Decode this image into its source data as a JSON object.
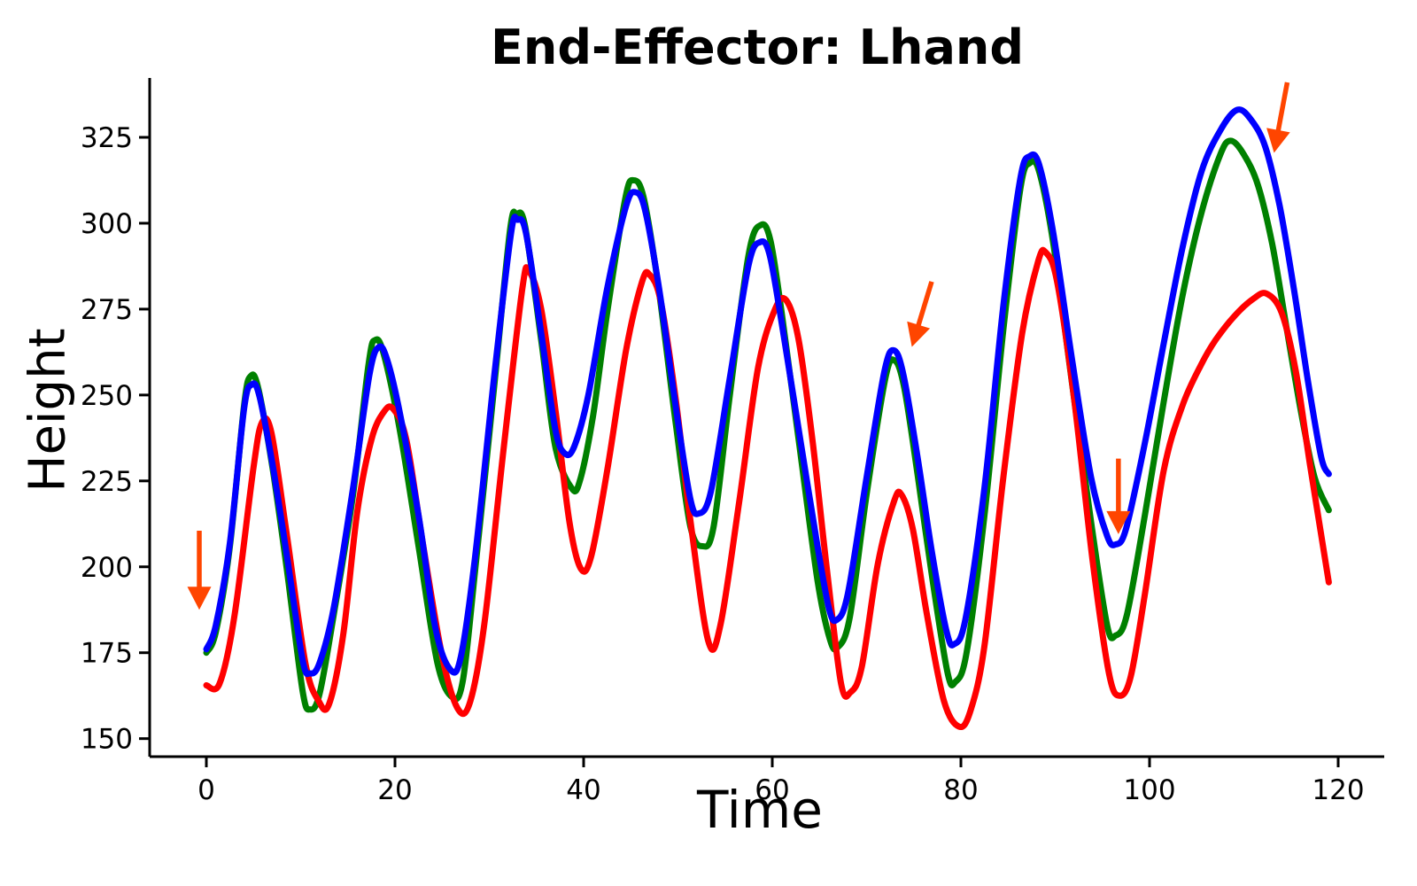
{
  "figure": {
    "background": "#ffffff",
    "text_color": "#000000",
    "spine_color": "#000000"
  },
  "chart_data": {
    "type": "line",
    "title": "End-Effector: Lhand",
    "xlabel": "Time",
    "ylabel": "Height",
    "xlim": [
      -6,
      125
    ],
    "ylim": [
      144.5,
      342
    ],
    "x_ticks": [
      0,
      20,
      40,
      60,
      80,
      100,
      120
    ],
    "y_ticks": [
      150,
      175,
      200,
      225,
      250,
      275,
      300,
      325
    ],
    "grid": false,
    "legend": "none",
    "series": [
      {
        "name": "green-line",
        "color": "#008000",
        "points": [
          [
            0,
            175
          ],
          [
            1,
            181
          ],
          [
            2.5,
            206
          ],
          [
            4,
            247
          ],
          [
            4.7,
            255.5
          ],
          [
            5.5,
            252
          ],
          [
            7,
            229
          ],
          [
            8.5,
            200
          ],
          [
            10.2,
            164
          ],
          [
            11,
            158.5
          ],
          [
            12,
            163
          ],
          [
            13.5,
            186
          ],
          [
            15.5,
            220
          ],
          [
            17.2,
            259
          ],
          [
            17.9,
            266
          ],
          [
            18.8,
            262
          ],
          [
            20.5,
            240
          ],
          [
            22.5,
            206
          ],
          [
            24.5,
            172
          ],
          [
            26.1,
            162
          ],
          [
            27.2,
            167
          ],
          [
            28.5,
            199
          ],
          [
            30.5,
            252
          ],
          [
            32.2,
            298
          ],
          [
            32.9,
            302.5
          ],
          [
            33.8,
            299
          ],
          [
            35.5,
            266
          ],
          [
            37,
            235
          ],
          [
            38.7,
            223
          ],
          [
            39.6,
            225
          ],
          [
            41,
            244
          ],
          [
            42.5,
            274
          ],
          [
            44.4,
            307
          ],
          [
            45.3,
            312.5
          ],
          [
            46.4,
            307
          ],
          [
            48,
            280
          ],
          [
            49.8,
            241
          ],
          [
            51.3,
            212
          ],
          [
            52.6,
            206
          ],
          [
            53.8,
            212
          ],
          [
            55.5,
            250
          ],
          [
            57.5,
            291
          ],
          [
            58.8,
            299.5
          ],
          [
            59.8,
            295
          ],
          [
            61,
            274
          ],
          [
            62.8,
            237
          ],
          [
            64.8,
            196
          ],
          [
            66.1,
            179
          ],
          [
            66.9,
            176.5
          ],
          [
            68.2,
            185
          ],
          [
            70,
            221
          ],
          [
            72,
            255
          ],
          [
            73,
            260
          ],
          [
            74,
            252
          ],
          [
            75.4,
            227
          ],
          [
            77,
            196
          ],
          [
            78.6,
            169
          ],
          [
            79.4,
            166.5
          ],
          [
            80.6,
            175
          ],
          [
            82.5,
            215
          ],
          [
            84.5,
            269
          ],
          [
            86.3,
            310
          ],
          [
            87.3,
            317.5
          ],
          [
            88.3,
            315
          ],
          [
            89.8,
            294
          ],
          [
            91.8,
            253
          ],
          [
            93.8,
            213
          ],
          [
            95.5,
            183
          ],
          [
            96.4,
            180
          ],
          [
            97.6,
            186
          ],
          [
            99.5,
            215
          ],
          [
            101.5,
            248
          ],
          [
            103.5,
            279
          ],
          [
            105.5,
            303
          ],
          [
            107.5,
            320
          ],
          [
            108.6,
            324
          ],
          [
            110,
            320
          ],
          [
            111.5,
            311
          ],
          [
            113,
            294
          ],
          [
            114.5,
            270
          ],
          [
            116,
            246
          ],
          [
            117.5,
            226
          ],
          [
            119,
            216.5
          ]
        ]
      },
      {
        "name": "red-line",
        "color": "#ff0000",
        "points": [
          [
            0,
            165.5
          ],
          [
            1.4,
            166
          ],
          [
            3,
            186
          ],
          [
            5,
            229
          ],
          [
            5.9,
            242
          ],
          [
            6.9,
            239
          ],
          [
            8.5,
            210
          ],
          [
            10.5,
            172
          ],
          [
            11.9,
            161
          ],
          [
            13,
            160
          ],
          [
            14.5,
            180
          ],
          [
            16,
            216
          ],
          [
            17.5,
            237
          ],
          [
            18.8,
            245
          ],
          [
            19.8,
            246
          ],
          [
            21.2,
            237
          ],
          [
            23,
            206
          ],
          [
            25,
            174
          ],
          [
            26.7,
            158.5
          ],
          [
            28,
            161
          ],
          [
            29.5,
            184
          ],
          [
            31.5,
            234
          ],
          [
            33.5,
            281
          ],
          [
            34.2,
            286
          ],
          [
            35.5,
            275
          ],
          [
            37,
            246
          ],
          [
            38.5,
            213
          ],
          [
            39.7,
            199.5
          ],
          [
            40.8,
            203
          ],
          [
            42.5,
            228
          ],
          [
            44.5,
            263
          ],
          [
            46.2,
            283
          ],
          [
            47,
            285
          ],
          [
            48.2,
            277
          ],
          [
            49.8,
            248
          ],
          [
            51.3,
            214
          ],
          [
            53.2,
            178.5
          ],
          [
            54.5,
            183
          ],
          [
            56.5,
            219
          ],
          [
            58.5,
            258
          ],
          [
            60.3,
            275
          ],
          [
            61.5,
            277.5
          ],
          [
            62.8,
            266
          ],
          [
            64.3,
            236
          ],
          [
            65.8,
            199
          ],
          [
            67.3,
            166
          ],
          [
            68.3,
            163.5
          ],
          [
            69.5,
            171
          ],
          [
            71.2,
            201
          ],
          [
            72.9,
            219
          ],
          [
            73.7,
            221
          ],
          [
            74.9,
            211
          ],
          [
            76.4,
            186
          ],
          [
            78.2,
            161
          ],
          [
            79.8,
            153.5
          ],
          [
            81,
            158
          ],
          [
            82.5,
            177
          ],
          [
            84.5,
            226
          ],
          [
            86.5,
            268
          ],
          [
            88.2,
            289
          ],
          [
            89,
            291.5
          ],
          [
            90.2,
            283
          ],
          [
            92,
            249
          ],
          [
            94,
            201
          ],
          [
            95.7,
            169
          ],
          [
            96.8,
            162.5
          ],
          [
            98,
            168
          ],
          [
            99.5,
            192
          ],
          [
            101.5,
            228
          ],
          [
            103.5,
            247
          ],
          [
            105.5,
            259
          ],
          [
            107,
            266
          ],
          [
            109,
            273
          ],
          [
            111,
            278
          ],
          [
            112.4,
            279.5
          ],
          [
            114,
            274
          ],
          [
            115.5,
            257
          ],
          [
            117,
            230
          ],
          [
            119,
            195.5
          ]
        ]
      },
      {
        "name": "blue-line",
        "color": "#0000ff",
        "points": [
          [
            0,
            176
          ],
          [
            1,
            183
          ],
          [
            2.5,
            207
          ],
          [
            4,
            246
          ],
          [
            4.8,
            253
          ],
          [
            5.6,
            250
          ],
          [
            7,
            230
          ],
          [
            8.5,
            204
          ],
          [
            10.2,
            173
          ],
          [
            11,
            169
          ],
          [
            12,
            172
          ],
          [
            13.5,
            188
          ],
          [
            15.5,
            222
          ],
          [
            17.3,
            256
          ],
          [
            18.3,
            264
          ],
          [
            19.2,
            260
          ],
          [
            20.5,
            245
          ],
          [
            22.5,
            215
          ],
          [
            24.3,
            182
          ],
          [
            25.9,
            170
          ],
          [
            27,
            174
          ],
          [
            28.5,
            203
          ],
          [
            30.5,
            255
          ],
          [
            32.3,
            297
          ],
          [
            33,
            301
          ],
          [
            33.9,
            297
          ],
          [
            35.5,
            268
          ],
          [
            37,
            240
          ],
          [
            38,
            233
          ],
          [
            39,
            235
          ],
          [
            40.5,
            250
          ],
          [
            42.5,
            281
          ],
          [
            44.5,
            305
          ],
          [
            45.5,
            309
          ],
          [
            46.5,
            304
          ],
          [
            48,
            281
          ],
          [
            49.8,
            246
          ],
          [
            51.3,
            220
          ],
          [
            52.2,
            215.5
          ],
          [
            53.5,
            222
          ],
          [
            55.5,
            255
          ],
          [
            57.5,
            288
          ],
          [
            58.7,
            294.5
          ],
          [
            59.7,
            291
          ],
          [
            61,
            271
          ],
          [
            62.8,
            240
          ],
          [
            64.8,
            206
          ],
          [
            66,
            188
          ],
          [
            66.8,
            184.5
          ],
          [
            68,
            192
          ],
          [
            70,
            226
          ],
          [
            71.9,
            257
          ],
          [
            72.9,
            263
          ],
          [
            73.9,
            256
          ],
          [
            75.4,
            232
          ],
          [
            77,
            203
          ],
          [
            78.5,
            181
          ],
          [
            79.3,
            177.5
          ],
          [
            80.5,
            185
          ],
          [
            82.5,
            223
          ],
          [
            84.5,
            276
          ],
          [
            86.3,
            313
          ],
          [
            87.3,
            319.5
          ],
          [
            88.3,
            317
          ],
          [
            89.8,
            297
          ],
          [
            91.8,
            260
          ],
          [
            93.8,
            226
          ],
          [
            95.5,
            209
          ],
          [
            96.4,
            206.5
          ],
          [
            97.5,
            211
          ],
          [
            99.5,
            236
          ],
          [
            101.5,
            265
          ],
          [
            103.5,
            293
          ],
          [
            105.5,
            315
          ],
          [
            107.5,
            327
          ],
          [
            109.3,
            333
          ],
          [
            110.8,
            330
          ],
          [
            112.3,
            322
          ],
          [
            113.8,
            305
          ],
          [
            115.3,
            281
          ],
          [
            116.8,
            254
          ],
          [
            118.2,
            232
          ],
          [
            119,
            227
          ]
        ]
      }
    ],
    "annotations": {
      "color": "#ff4500",
      "arrows": [
        {
          "name": "arrow-start",
          "from": [
            -0.75,
            210.5
          ],
          "to": [
            -0.75,
            187.5
          ]
        },
        {
          "name": "arrow-mid-peak",
          "from": [
            76.9,
            283.0
          ],
          "to": [
            74.8,
            264.0
          ]
        },
        {
          "name": "arrow-mid-trough",
          "from": [
            96.7,
            231.5
          ],
          "to": [
            96.7,
            209.5
          ]
        },
        {
          "name": "arrow-end-peak",
          "from": [
            114.6,
            341.0
          ],
          "to": [
            113.2,
            320.5
          ]
        }
      ]
    }
  }
}
